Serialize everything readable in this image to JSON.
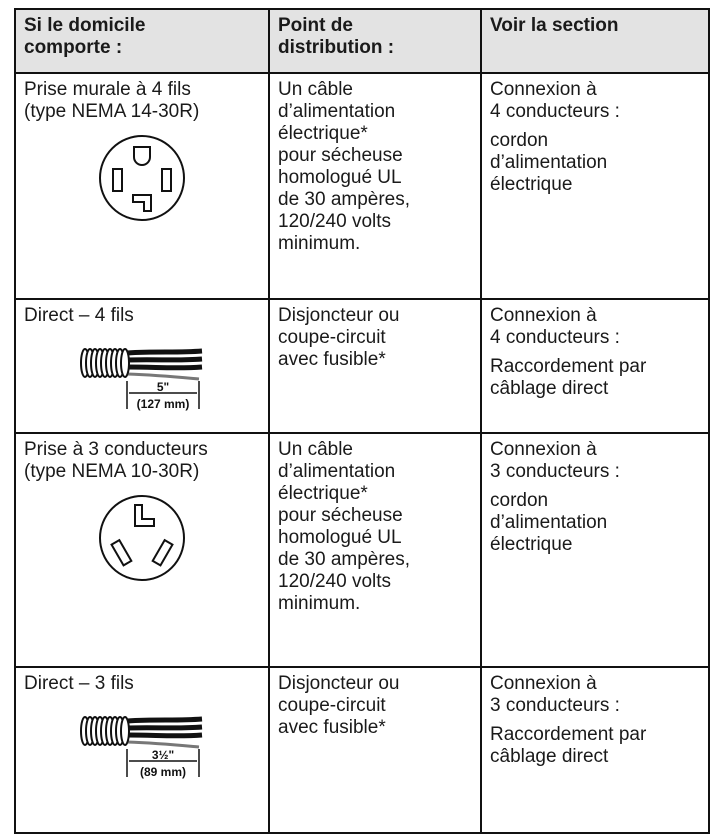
{
  "table": {
    "header": [
      [
        "Si le domicile",
        "comporte :"
      ],
      [
        "Point de",
        "distribution :"
      ],
      [
        "Voir la section"
      ]
    ],
    "rows": [
      {
        "cells": [
          [
            [
              "Prise murale à 4 fils",
              "(type NEMA 14-30R)"
            ]
          ],
          [
            [
              "Un câble",
              "d’alimentation",
              "électrique*",
              "pour sécheuse",
              "homologué UL",
              "de 30 ampères,",
              "120/240 volts",
              "minimum."
            ]
          ],
          [
            [
              "Connexion à",
              "4 conducteurs :"
            ],
            [
              "cordon",
              "d’alimentation",
              "électrique"
            ]
          ]
        ]
      },
      {
        "cells": [
          [
            [
              "Direct – 4 fils"
            ]
          ],
          [
            [
              "Disjoncteur ou",
              "coupe-circuit",
              "avec fusible*"
            ]
          ],
          [
            [
              "Connexion à",
              "4 conducteurs :"
            ],
            [
              "Raccordement par",
              "câblage direct"
            ]
          ]
        ],
        "dimension": [
          "5\"",
          "(127 mm)"
        ]
      },
      {
        "cells": [
          [
            [
              "Prise à 3 conducteurs",
              "(type NEMA 10-30R)"
            ]
          ],
          [
            [
              "Un câble",
              "d’alimentation",
              "électrique*",
              "pour sécheuse",
              "homologué UL",
              "de 30 ampères,",
              "120/240 volts",
              "minimum."
            ]
          ],
          [
            [
              "Connexion à",
              "3 conducteurs :"
            ],
            [
              "cordon",
              "d’alimentation",
              "électrique"
            ]
          ]
        ]
      },
      {
        "cells": [
          [
            [
              "Direct – 3 fils"
            ]
          ],
          [
            [
              "Disjoncteur ou",
              "coupe-circuit",
              "avec fusible*"
            ]
          ],
          [
            [
              "Connexion à",
              "3 conducteurs :"
            ],
            [
              "Raccordement par",
              "câblage direct"
            ]
          ]
        ],
        "dimension": [
          "3½\"",
          "(89 mm)"
        ]
      }
    ]
  }
}
